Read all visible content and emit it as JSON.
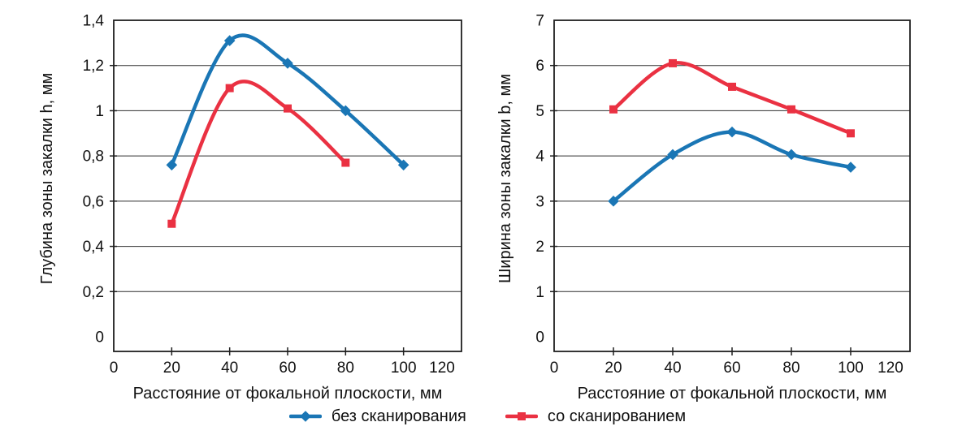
{
  "figure": {
    "background": "#ffffff",
    "text_color": "#111111",
    "grid_color": "#2e2e2e",
    "axis_color": "#1f1f1f",
    "series_colors": {
      "no_scan": "#1a76b5",
      "scan": "#ea3142"
    }
  },
  "legend": {
    "position": "bottom-center",
    "items": [
      {
        "key": "no_scan",
        "label": "без сканирования",
        "marker": "diamond",
        "color": "#1a76b5"
      },
      {
        "key": "scan",
        "label": "со сканированием",
        "marker": "square",
        "color": "#ea3142"
      }
    ]
  },
  "chart_data": [
    {
      "id": "depth-chart",
      "type": "line",
      "title": "",
      "xlabel": "Расстояние от фокальной плоскости, мм",
      "ylabel": "Глубина зоны закалки h, мм",
      "xlim": [
        0,
        120
      ],
      "ylim": [
        0,
        1.4
      ],
      "grid": "horizontal",
      "xticks": {
        "values": [
          0,
          20,
          40,
          60,
          80,
          100,
          120
        ],
        "labels": [
          "0",
          "20",
          "40",
          "60",
          "80",
          "100",
          "120"
        ]
      },
      "yticks": {
        "values": [
          0,
          0.2,
          0.4,
          0.6,
          0.8,
          1,
          1.2,
          1.4
        ],
        "labels": [
          "0",
          "0,2",
          "0,4",
          "0,6",
          "0,8",
          "1",
          "1,2",
          "1,4"
        ]
      },
      "series": [
        {
          "name": "без сканирования",
          "color_key": "no_scan",
          "marker": "diamond",
          "x": [
            20,
            40,
            60,
            80,
            100
          ],
          "y": [
            0.76,
            1.31,
            1.21,
            1.0,
            0.76
          ]
        },
        {
          "name": "со сканированием",
          "color_key": "scan",
          "marker": "square",
          "x": [
            20,
            40,
            60,
            80
          ],
          "y": [
            0.5,
            1.1,
            1.01,
            0.77
          ]
        }
      ]
    },
    {
      "id": "width-chart",
      "type": "line",
      "title": "",
      "xlabel": "Расстояние от фокальной плоскости, мм",
      "ylabel": "Ширина зоны закалки b, мм",
      "xlim": [
        0,
        120
      ],
      "ylim": [
        0,
        7
      ],
      "grid": "horizontal",
      "xticks": {
        "values": [
          0,
          20,
          40,
          60,
          80,
          100,
          120
        ],
        "labels": [
          "0",
          "20",
          "40",
          "60",
          "80",
          "100",
          "120"
        ]
      },
      "yticks": {
        "values": [
          0,
          1,
          2,
          3,
          4,
          5,
          6,
          7
        ],
        "labels": [
          "0",
          "1",
          "2",
          "3",
          "4",
          "5",
          "6",
          "7"
        ]
      },
      "series": [
        {
          "name": "без сканирования",
          "color_key": "no_scan",
          "marker": "diamond",
          "x": [
            20,
            40,
            60,
            80,
            100
          ],
          "y": [
            3.0,
            4.03,
            4.53,
            4.03,
            3.75
          ]
        },
        {
          "name": "со сканированием",
          "color_key": "scan",
          "marker": "square",
          "x": [
            20,
            40,
            60,
            80,
            100
          ],
          "y": [
            5.03,
            6.05,
            5.53,
            5.03,
            4.5
          ]
        }
      ]
    }
  ]
}
